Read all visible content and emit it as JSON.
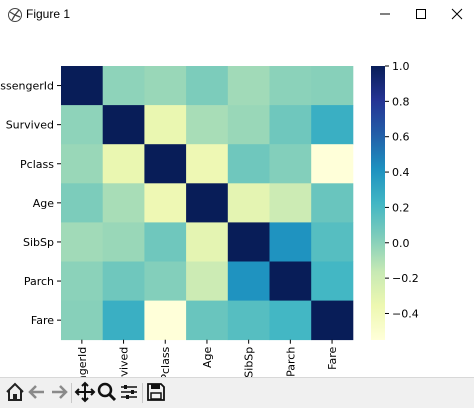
{
  "window": {
    "title": "Figure 1"
  },
  "toolbar": {
    "buttons": [
      "home-icon",
      "back-icon",
      "forward-icon",
      "pan-icon",
      "zoom-icon",
      "configure-subplots-icon",
      "save-icon"
    ]
  },
  "colormap": {
    "name": "YlGnBu",
    "stops": [
      "#ffffd9",
      "#edf8b1",
      "#c7e9b4",
      "#7fcdbb",
      "#41b6c4",
      "#1d91c0",
      "#225ea8",
      "#253494",
      "#081d58"
    ]
  },
  "chart_data": {
    "type": "heatmap",
    "rows": [
      "PassengerId",
      "Survived",
      "Pclass",
      "Age",
      "SibSp",
      "Parch",
      "Fare"
    ],
    "cols": [
      "PassengerId",
      "Survived",
      "Pclass",
      "Age",
      "SibSp",
      "Parch",
      "Fare"
    ],
    "row_tick_labels": [
      "assengerId",
      "Survived",
      "Pclass",
      "Age",
      "SibSp",
      "Parch",
      "Fare"
    ],
    "col_tick_labels": [
      "ngerId",
      "urvived",
      "Pclass",
      "Age",
      "SibSp",
      "Parch",
      "Fare"
    ],
    "values": [
      [
        1.0,
        -0.01,
        -0.04,
        0.04,
        -0.06,
        -0.0,
        0.01
      ],
      [
        -0.01,
        1.0,
        -0.34,
        -0.08,
        -0.04,
        0.08,
        0.26
      ],
      [
        -0.04,
        -0.34,
        1.0,
        -0.37,
        0.08,
        0.02,
        -0.55
      ],
      [
        0.04,
        -0.08,
        -0.37,
        1.0,
        -0.31,
        -0.19,
        0.1
      ],
      [
        -0.06,
        -0.04,
        0.08,
        -0.31,
        1.0,
        0.41,
        0.16
      ],
      [
        -0.0,
        0.08,
        0.02,
        -0.19,
        0.41,
        1.0,
        0.22
      ],
      [
        0.01,
        0.26,
        -0.55,
        0.1,
        0.16,
        0.22,
        1.0
      ]
    ],
    "vmin": -0.55,
    "vmax": 1.0,
    "colorbar_ticks": [
      1.0,
      0.8,
      0.6,
      0.4,
      0.2,
      0.0,
      -0.2,
      -0.4
    ],
    "colorbar_tick_labels": [
      "1.0",
      "0.8",
      "0.6",
      "0.4",
      "0.2",
      "0.0",
      "−0.2",
      "−0.4"
    ]
  }
}
